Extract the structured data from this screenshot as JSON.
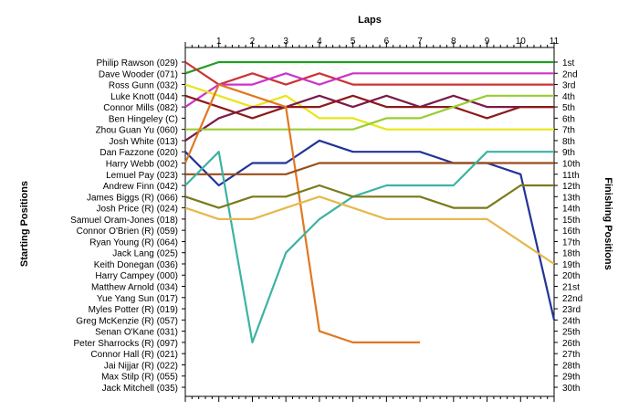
{
  "chart_data": {
    "type": "line",
    "title": "Laps",
    "ylabel_left": "Starting Positions",
    "ylabel_right": "Finishing Positions",
    "x": [
      0,
      1,
      2,
      3,
      4,
      5,
      6,
      7,
      8,
      9,
      10,
      11
    ],
    "x_tick_labels": [
      "1",
      "2",
      "3",
      "4",
      "5",
      "6",
      "7",
      "8",
      "9",
      "10",
      "11"
    ],
    "xlim": [
      0,
      11
    ],
    "ylim": [
      1,
      30
    ],
    "y_inverted": true,
    "grid": false,
    "start_labels": [
      "Philip Rawson (029)",
      "Dave Wooder (071)",
      "Ross Gunn (032)",
      "Luke Knott (044)",
      "Connor Mills (082)",
      "Ben Hingeley (C)",
      "Zhou Guan Yu (060)",
      "Josh White (013)",
      "Dan Fazzone (020)",
      "Harry Webb (002)",
      "Lemuel Pay (023)",
      "Andrew Finn (042)",
      "James Biggs (R) (066)",
      "Josh Price (R) (024)",
      "Samuel Oram-Jones (018)",
      "Connor O'Brien (R) (059)",
      "Ryan Young (R) (064)",
      "Jack Lang (025)",
      "Keith Donegan (036)",
      "Harry Campey (000)",
      "Matthew Arnold (034)",
      "Yue Yang Sun (017)",
      "Myles Potter (R) (019)",
      "Greg McKenzie (R) (057)",
      "Senan O'Kane (031)",
      "Peter Sharrocks (R) (097)",
      "Connor Hall (R) (021)",
      "Jai Nijjar (R) (022)",
      "Max Stilp  (R) (055)",
      "Jack Mitchell (035)"
    ],
    "finish_labels": [
      "1st",
      "2nd",
      "3rd",
      "4th",
      "5th",
      "6th",
      "7th",
      "8th",
      "9th",
      "10th",
      "11th",
      "12th",
      "13th",
      "14th",
      "15th",
      "16th",
      "17th",
      "18th",
      "19th",
      "20th",
      "21st",
      "22nd",
      "23rd",
      "24th",
      "25th",
      "26th",
      "27th",
      "28th",
      "29th",
      "30th"
    ],
    "series": [
      {
        "color": "#1f9e1f",
        "values": [
          2,
          1,
          1,
          1,
          1,
          1,
          1,
          1,
          1,
          1,
          1,
          1
        ]
      },
      {
        "color": "#cc3333",
        "values": [
          1,
          3,
          2,
          3,
          2,
          3,
          3,
          3,
          3,
          3,
          3,
          3
        ]
      },
      {
        "color": "#cc33cc",
        "values": [
          5,
          3,
          3,
          2,
          3,
          2,
          2,
          2,
          2,
          2,
          2,
          2
        ]
      },
      {
        "color": "#e6e61a",
        "values": [
          3,
          4,
          5,
          4,
          6,
          6,
          7,
          7,
          7,
          7,
          7,
          7
        ]
      },
      {
        "color": "#7a1a4a",
        "values": [
          8,
          6,
          5,
          5,
          4,
          5,
          4,
          5,
          4,
          5,
          5,
          5
        ]
      },
      {
        "color": "#8b1a1a",
        "values": [
          4,
          5,
          6,
          5,
          5,
          4,
          5,
          5,
          5,
          6,
          5,
          5
        ]
      },
      {
        "color": "#9acd32",
        "values": [
          7,
          7,
          7,
          7,
          7,
          7,
          6,
          6,
          5,
          4,
          4,
          4
        ]
      },
      {
        "color": "#223399",
        "values": [
          9,
          12,
          10,
          10,
          8,
          9,
          9,
          9,
          10,
          10,
          11,
          24
        ]
      },
      {
        "color": "#e07820",
        "values": [
          10,
          3,
          4,
          5,
          25,
          26,
          26,
          26,
          null,
          null,
          null,
          null
        ]
      },
      {
        "color": "#994d1a",
        "values": [
          11,
          11,
          11,
          11,
          10,
          10,
          10,
          10,
          10,
          10,
          10,
          10
        ]
      },
      {
        "color": "#3cb3a3",
        "values": [
          12,
          9,
          26,
          18,
          15,
          13,
          12,
          12,
          12,
          9,
          9,
          9
        ]
      },
      {
        "color": "#7a7a1a",
        "values": [
          13,
          14,
          13,
          13,
          12,
          13,
          13,
          13,
          14,
          14,
          12,
          12
        ]
      },
      {
        "color": "#e6b84d",
        "values": [
          14,
          15,
          15,
          14,
          13,
          14,
          15,
          15,
          15,
          15,
          17,
          19
        ]
      }
    ]
  }
}
